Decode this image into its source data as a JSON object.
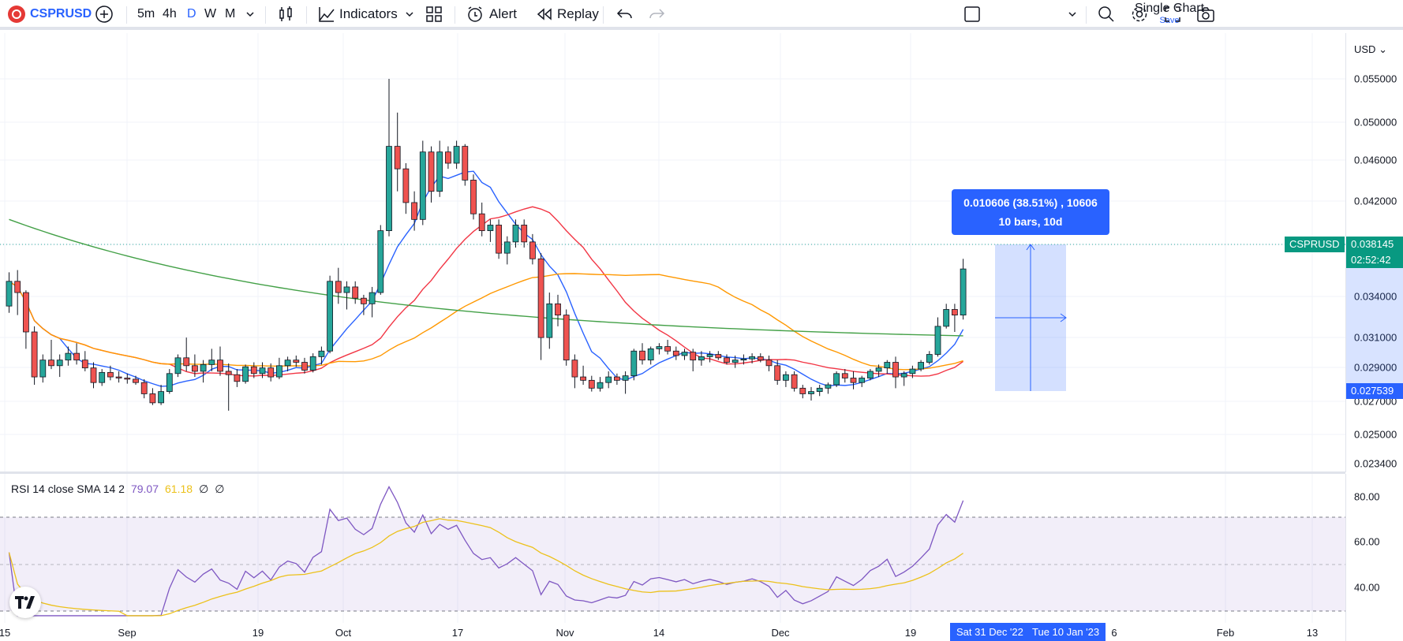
{
  "toolbar": {
    "symbol": "CSPRUSD",
    "timeframes": [
      {
        "label": "5m",
        "active": false
      },
      {
        "label": "4h",
        "active": false
      },
      {
        "label": "D",
        "active": true
      },
      {
        "label": "W",
        "active": false
      },
      {
        "label": "M",
        "active": false
      }
    ],
    "indicators_label": "Indicators",
    "alert_label": "Alert",
    "replay_label": "Replay",
    "layout_title": "Single Chart",
    "layout_sub": "Save",
    "icons": [
      "add-symbol-icon",
      "chevron-down-icon",
      "candles-icon",
      "indicators-icon",
      "templates-icon",
      "alert-icon",
      "replay-icon",
      "undo-icon",
      "redo-icon",
      "layout-square-icon",
      "search-icon",
      "settings-icon",
      "fullscreen-icon",
      "camera-icon"
    ]
  },
  "price_axis": {
    "currency": "USD",
    "ticks": [
      "0.055000",
      "0.050000",
      "0.046000",
      "0.042000",
      "0.034000",
      "0.031000",
      "0.029000",
      "0.027000",
      "0.025000",
      "0.023400"
    ],
    "last_price": "0.038145",
    "countdown": "02:52:42",
    "symbol_tag": "CSPRUSD",
    "range_low": "0.027539"
  },
  "measure": {
    "line1": "0.010606 (38.51%) , 10606",
    "line2": "10 bars, 10d"
  },
  "rsi": {
    "label": "RSI 14 close SMA 14 2",
    "value": "79.07",
    "sma_value": "61.18",
    "v3": "∅",
    "v4": "∅",
    "ticks": [
      "80.00",
      "60.00",
      "40.00"
    ]
  },
  "time_axis": {
    "labels": [
      "15",
      "Sep",
      "19",
      "Oct",
      "17",
      "Nov",
      "14",
      "Dec",
      "19",
      "Feb",
      "13"
    ],
    "range_start": "Sat 31 Dec '22",
    "range_end": "Tue 10 Jan '23",
    "tail": "6"
  },
  "colors": {
    "up": "#26a69a",
    "down": "#ef5350",
    "accent": "#2962ff",
    "rsi": "#7e57c2",
    "rsi_sma": "#ecc11a",
    "ma_blue": "#2962ff",
    "ma_red": "#f23645",
    "ma_orange": "#ff9800",
    "ma_green": "#43a047"
  },
  "chart_data": {
    "type": "candlestick",
    "candles": [
      [
        0.0348,
        0.0378,
        0.0342,
        0.037
      ],
      [
        0.037,
        0.038,
        0.034,
        0.036
      ],
      [
        0.036,
        0.0362,
        0.031,
        0.0325
      ],
      [
        0.0325,
        0.033,
        0.0278,
        0.0285
      ],
      [
        0.0285,
        0.0305,
        0.028,
        0.03
      ],
      [
        0.03,
        0.0318,
        0.0292,
        0.0295
      ],
      [
        0.0295,
        0.0305,
        0.0285,
        0.03
      ],
      [
        0.03,
        0.0312,
        0.0295,
        0.0306
      ],
      [
        0.0306,
        0.0315,
        0.0296,
        0.03
      ],
      [
        0.03,
        0.0308,
        0.029,
        0.0293
      ],
      [
        0.0293,
        0.0298,
        0.0275,
        0.028
      ],
      [
        0.028,
        0.0292,
        0.0277,
        0.0289
      ],
      [
        0.0289,
        0.0295,
        0.0282,
        0.0285
      ],
      [
        0.0285,
        0.029,
        0.028,
        0.0284
      ],
      [
        0.0284,
        0.0288,
        0.0279,
        0.0283
      ],
      [
        0.0283,
        0.0286,
        0.0278,
        0.028
      ],
      [
        0.028,
        0.0283,
        0.0266,
        0.027
      ],
      [
        0.027,
        0.0275,
        0.026,
        0.0262
      ],
      [
        0.0262,
        0.0278,
        0.026,
        0.0272
      ],
      [
        0.0272,
        0.0292,
        0.027,
        0.0288
      ],
      [
        0.0288,
        0.0305,
        0.0285,
        0.0302
      ],
      [
        0.0302,
        0.032,
        0.029,
        0.0295
      ],
      [
        0.0295,
        0.0305,
        0.0285,
        0.029
      ],
      [
        0.029,
        0.03,
        0.028,
        0.0296
      ],
      [
        0.0296,
        0.031,
        0.029,
        0.03
      ],
      [
        0.03,
        0.0312,
        0.0286,
        0.029
      ],
      [
        0.029,
        0.0297,
        0.0255,
        0.0287
      ],
      [
        0.0287,
        0.0292,
        0.0276,
        0.0281
      ],
      [
        0.0281,
        0.0296,
        0.0279,
        0.0294
      ],
      [
        0.0294,
        0.0298,
        0.0284,
        0.0288
      ],
      [
        0.0288,
        0.0298,
        0.0284,
        0.0293
      ],
      [
        0.0293,
        0.0297,
        0.0281,
        0.0285
      ],
      [
        0.0285,
        0.0302,
        0.0283,
        0.0295
      ],
      [
        0.0295,
        0.0303,
        0.029,
        0.03
      ],
      [
        0.03,
        0.0304,
        0.0294,
        0.0298
      ],
      [
        0.0298,
        0.0302,
        0.0288,
        0.0291
      ],
      [
        0.0291,
        0.0306,
        0.0289,
        0.0303
      ],
      [
        0.0303,
        0.0312,
        0.0296,
        0.0308
      ],
      [
        0.0308,
        0.0375,
        0.0306,
        0.037
      ],
      [
        0.037,
        0.0382,
        0.035,
        0.036
      ],
      [
        0.036,
        0.037,
        0.0345,
        0.0365
      ],
      [
        0.0365,
        0.037,
        0.035,
        0.0355
      ],
      [
        0.0355,
        0.0358,
        0.034,
        0.035
      ],
      [
        0.035,
        0.0365,
        0.0338,
        0.036
      ],
      [
        0.036,
        0.042,
        0.0358,
        0.0415
      ],
      [
        0.0415,
        0.055,
        0.041,
        0.049
      ],
      [
        0.049,
        0.052,
        0.045,
        0.047
      ],
      [
        0.047,
        0.0475,
        0.043,
        0.044
      ],
      [
        0.044,
        0.045,
        0.0415,
        0.0425
      ],
      [
        0.0425,
        0.0495,
        0.042,
        0.0485
      ],
      [
        0.0485,
        0.049,
        0.044,
        0.045
      ],
      [
        0.045,
        0.0495,
        0.0445,
        0.0485
      ],
      [
        0.0485,
        0.049,
        0.047,
        0.0475
      ],
      [
        0.0475,
        0.0495,
        0.047,
        0.049
      ],
      [
        0.049,
        0.0492,
        0.0455,
        0.046
      ],
      [
        0.046,
        0.0465,
        0.0425,
        0.043
      ],
      [
        0.043,
        0.044,
        0.041,
        0.0415
      ],
      [
        0.0415,
        0.0425,
        0.0405,
        0.042
      ],
      [
        0.042,
        0.0425,
        0.039,
        0.0395
      ],
      [
        0.0395,
        0.041,
        0.0385,
        0.0405
      ],
      [
        0.0405,
        0.0425,
        0.04,
        0.042
      ],
      [
        0.042,
        0.0425,
        0.04,
        0.0405
      ],
      [
        0.0405,
        0.0412,
        0.0385,
        0.039
      ],
      [
        0.039,
        0.0395,
        0.03,
        0.032
      ],
      [
        0.032,
        0.036,
        0.031,
        0.035
      ],
      [
        0.035,
        0.0358,
        0.033,
        0.034
      ],
      [
        0.034,
        0.0345,
        0.0295,
        0.03
      ],
      [
        0.03,
        0.0305,
        0.0275,
        0.0285
      ],
      [
        0.0285,
        0.0295,
        0.0278,
        0.0282
      ],
      [
        0.0282,
        0.0286,
        0.0272,
        0.0275
      ],
      [
        0.0275,
        0.0285,
        0.0272,
        0.028
      ],
      [
        0.028,
        0.029,
        0.0275,
        0.0285
      ],
      [
        0.0285,
        0.0288,
        0.0278,
        0.0282
      ],
      [
        0.0282,
        0.029,
        0.027,
        0.0286
      ],
      [
        0.0286,
        0.031,
        0.0282,
        0.0308
      ],
      [
        0.0308,
        0.0315,
        0.0296,
        0.03
      ],
      [
        0.03,
        0.0312,
        0.0296,
        0.031
      ],
      [
        0.031,
        0.0315,
        0.0305,
        0.0312
      ],
      [
        0.0312,
        0.0318,
        0.0305,
        0.0308
      ],
      [
        0.0308,
        0.0312,
        0.03,
        0.0304
      ],
      [
        0.0304,
        0.031,
        0.03,
        0.0307
      ],
      [
        0.0307,
        0.031,
        0.029,
        0.03
      ],
      [
        0.03,
        0.0308,
        0.0295,
        0.0303
      ],
      [
        0.0303,
        0.0308,
        0.0298,
        0.0305
      ],
      [
        0.0305,
        0.0308,
        0.03,
        0.0302
      ],
      [
        0.0302,
        0.0305,
        0.0296,
        0.0298
      ],
      [
        0.0298,
        0.0304,
        0.0293,
        0.03
      ],
      [
        0.03,
        0.0305,
        0.0296,
        0.0301
      ],
      [
        0.0301,
        0.0306,
        0.0297,
        0.0303
      ],
      [
        0.0303,
        0.0306,
        0.0298,
        0.03
      ],
      [
        0.03,
        0.0304,
        0.029,
        0.0295
      ],
      [
        0.0295,
        0.03,
        0.0278,
        0.0282
      ],
      [
        0.0282,
        0.029,
        0.0276,
        0.0287
      ],
      [
        0.0287,
        0.029,
        0.0272,
        0.0275
      ],
      [
        0.0275,
        0.0278,
        0.0266,
        0.027
      ],
      [
        0.027,
        0.0276,
        0.0264,
        0.0272
      ],
      [
        0.0272,
        0.0278,
        0.0268,
        0.0275
      ],
      [
        0.0275,
        0.028,
        0.027,
        0.0278
      ],
      [
        0.0278,
        0.029,
        0.0276,
        0.0288
      ],
      [
        0.0288,
        0.0292,
        0.028,
        0.0284
      ],
      [
        0.0284,
        0.029,
        0.0274,
        0.028
      ],
      [
        0.028,
        0.0286,
        0.0276,
        0.0284
      ],
      [
        0.0284,
        0.0292,
        0.0282,
        0.029
      ],
      [
        0.029,
        0.0296,
        0.0285,
        0.0293
      ],
      [
        0.0293,
        0.03,
        0.0288,
        0.0298
      ],
      [
        0.0298,
        0.0303,
        0.0275,
        0.0285
      ],
      [
        0.0285,
        0.029,
        0.0277,
        0.0288
      ],
      [
        0.0288,
        0.0295,
        0.0284,
        0.0292
      ],
      [
        0.0292,
        0.03,
        0.029,
        0.0298
      ],
      [
        0.0298,
        0.0308,
        0.0296,
        0.0305
      ],
      [
        0.0305,
        0.0338,
        0.0303,
        0.033
      ],
      [
        0.033,
        0.035,
        0.0328,
        0.0345
      ],
      [
        0.0345,
        0.035,
        0.0325,
        0.034
      ],
      [
        0.034,
        0.039,
        0.0336,
        0.0381
      ]
    ]
  }
}
